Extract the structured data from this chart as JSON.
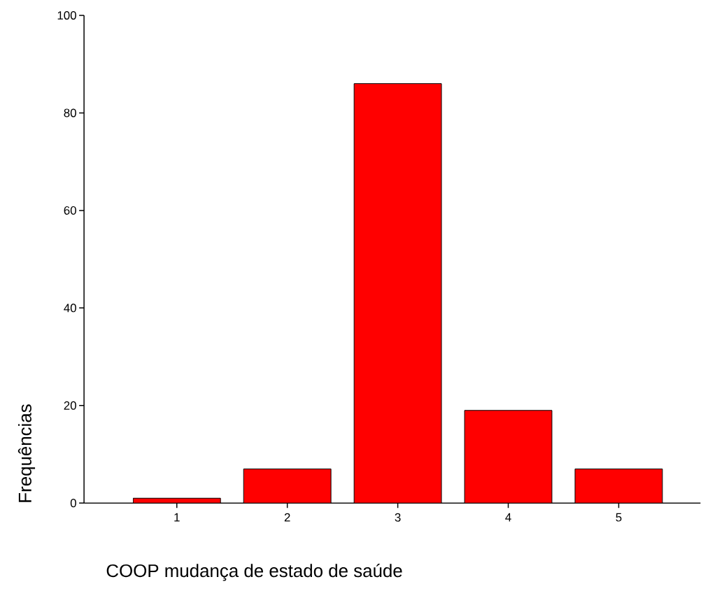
{
  "chart_data": {
    "type": "bar",
    "xlabel": "COOP mudança de estado de saúde",
    "ylabel": "Frequências",
    "categories": [
      "1",
      "2",
      "3",
      "4",
      "5"
    ],
    "values": [
      1,
      7,
      86,
      19,
      7
    ],
    "color": "#ff0000",
    "ylim": [
      0,
      100
    ],
    "yticks": [
      0,
      20,
      40,
      60,
      80,
      100
    ],
    "grid": false
  }
}
